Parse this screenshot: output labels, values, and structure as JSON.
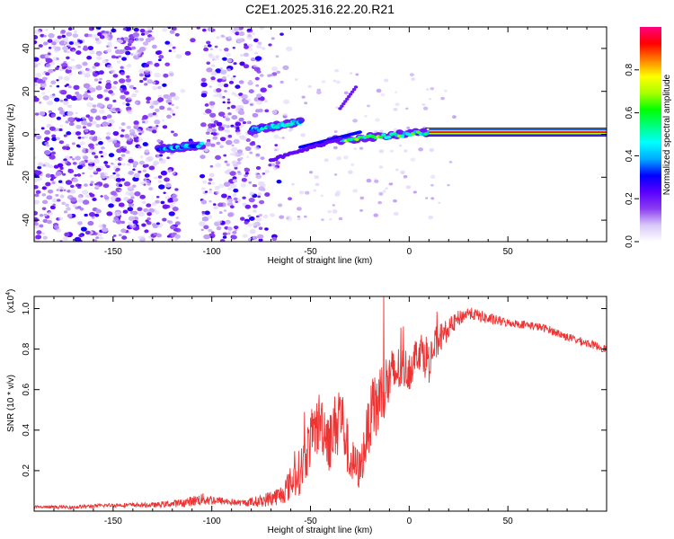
{
  "figure_title": "C2E1.2025.316.22.20.R21",
  "chart_data": [
    {
      "type": "heatmap",
      "title": "C2E1.2025.316.22.20.R21",
      "xlabel": "Height of straight line (km)",
      "ylabel": "Frequency (Hz)",
      "xlim": [
        -190,
        100
      ],
      "ylim": [
        -50,
        50
      ],
      "xticks": [
        -150,
        -100,
        -50,
        0,
        50
      ],
      "yticks": [
        -40,
        -20,
        0,
        20,
        40
      ],
      "xtick_labels": [
        "-150",
        "-100",
        "-50",
        "0",
        "50"
      ],
      "ytick_labels": [
        "-40",
        "-20",
        "0",
        "20",
        "40"
      ],
      "colorbar": {
        "label": "Normalized spectral amplitude",
        "range": [
          0.0,
          1.0
        ],
        "ticks": [
          0.0,
          0.2,
          0.4,
          0.6,
          0.8
        ],
        "tick_labels": [
          "0.0",
          "0.2",
          "0.4",
          "0.6",
          "0.8"
        ],
        "colormap": [
          "#ffffff",
          "#d8c8f8",
          "#8a3cf0",
          "#5a00ff",
          "#0000ff",
          "#00aaff",
          "#00ffff",
          "#00ff80",
          "#00ff00",
          "#aaff00",
          "#ffff00",
          "#ff8000",
          "#ff0000",
          "#ff0080"
        ]
      },
      "features": [
        {
          "name": "diffuse-low-amplitude-scatter",
          "x_range": [
            -190,
            -75
          ],
          "freq_range": [
            -50,
            50
          ],
          "amplitude": 0.15
        },
        {
          "name": "gap",
          "x_range": [
            -117,
            -105
          ],
          "amplitude": 0.02
        },
        {
          "name": "ridge-segment",
          "x": [
            -127,
            -105
          ],
          "freq": [
            -7,
            -5
          ],
          "amplitude": 0.45
        },
        {
          "name": "ridge-segment",
          "x": [
            -80,
            -55
          ],
          "freq": [
            2,
            6
          ],
          "amplitude": 0.5
        },
        {
          "name": "ridge-segment",
          "x": [
            -40,
            10
          ],
          "freq": [
            -3,
            1
          ],
          "amplitude": 0.65
        },
        {
          "name": "main-ridge",
          "x": [
            10,
            100
          ],
          "freq": [
            1,
            1
          ],
          "amplitude": 0.95
        }
      ]
    },
    {
      "type": "line",
      "xlabel": "Height of straight line (km)",
      "ylabel": "SNR (10 * v/v)",
      "ylabel_multiplier": "(x10",
      "ylabel_multiplier_exp": "4",
      "ylabel_multiplier_close": ")",
      "xlim": [
        -190,
        100
      ],
      "ylim": [
        0,
        1.06
      ],
      "xticks": [
        -150,
        -100,
        -50,
        0,
        50
      ],
      "yticks": [
        0.2,
        0.4,
        0.6,
        0.8,
        1.0
      ],
      "xtick_labels": [
        "-150",
        "-100",
        "-50",
        "0",
        "50"
      ],
      "ytick_labels": [
        "0.2",
        "0.4",
        "0.6",
        "0.8",
        "1.0"
      ],
      "series": [
        {
          "name": "SNR",
          "color": "#ee3333",
          "x": [
            -190,
            -170,
            -150,
            -130,
            -115,
            -105,
            -95,
            -85,
            -75,
            -65,
            -55,
            -50,
            -45,
            -40,
            -35,
            -30,
            -25,
            -20,
            -15,
            -10,
            -5,
            0,
            5,
            10,
            15,
            20,
            25,
            30,
            40,
            50,
            60,
            70,
            80,
            90,
            100
          ],
          "y": [
            0.02,
            0.02,
            0.03,
            0.03,
            0.04,
            0.06,
            0.05,
            0.04,
            0.05,
            0.08,
            0.2,
            0.35,
            0.45,
            0.35,
            0.5,
            0.25,
            0.2,
            0.45,
            0.55,
            0.65,
            0.7,
            0.7,
            0.8,
            0.75,
            0.85,
            0.9,
            0.95,
            0.98,
            0.95,
            0.93,
            0.92,
            0.9,
            0.86,
            0.83,
            0.8
          ],
          "noise": [
            0.008,
            0.008,
            0.01,
            0.012,
            0.02,
            0.03,
            0.02,
            0.015,
            0.03,
            0.05,
            0.12,
            0.14,
            0.16,
            0.15,
            0.18,
            0.12,
            0.1,
            0.15,
            0.2,
            0.15,
            0.12,
            0.1,
            0.1,
            0.12,
            0.08,
            0.05,
            0.04,
            0.03,
            0.03,
            0.02,
            0.02,
            0.02,
            0.02,
            0.02,
            0.02
          ]
        }
      ]
    }
  ]
}
